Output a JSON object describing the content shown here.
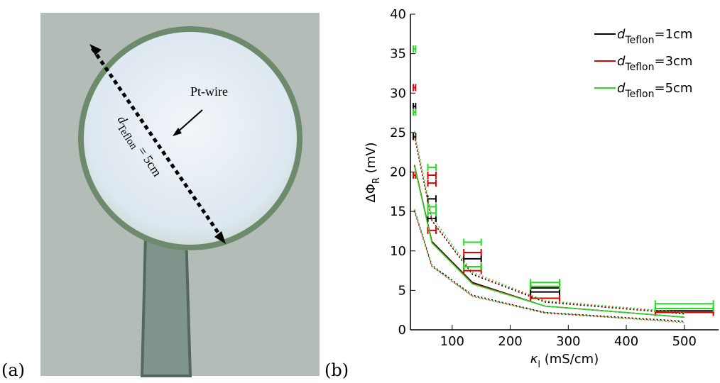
{
  "panel_a": {
    "label": "(a)",
    "wire": "Pt-wire",
    "dimension": {
      "symbol": "d",
      "sub": "Teflon",
      "text": " = 5cm"
    }
  },
  "chart_data": {
    "type": "line",
    "label": "(b)",
    "xlabel": {
      "symbol": "κ",
      "sub": "l",
      "text": " (mS/cm)"
    },
    "ylabel": {
      "symbol": "ΔΦ",
      "sub": "R",
      "text": " (mV)"
    },
    "xlim": [
      28,
      559
    ],
    "ylim": [
      0,
      40
    ],
    "xticks": [
      100,
      200,
      300,
      400,
      500
    ],
    "yticks": [
      0,
      5,
      10,
      15,
      20,
      25,
      30,
      35,
      40
    ],
    "legend": "upper right",
    "x": [
      35,
      65,
      135,
      260,
      500
    ],
    "series": [
      {
        "name": {
          "symbol": "d",
          "sub": "Teflon",
          "text": "=1cm"
        },
        "color": "#000000",
        "values": [
          20.8,
          11.2,
          6.0,
          3.0,
          1.6
        ],
        "upper": [
          24.5,
          13.8,
          7.0,
          3.5,
          2.0
        ],
        "lower": [
          15.2,
          8.2,
          4.4,
          2.2,
          1.1
        ],
        "points": {
          "x": [
            35,
            35,
            65,
            65,
            135,
            135,
            260,
            260,
            500
          ],
          "y": [
            24.5,
            28.3,
            14.1,
            16.6,
            8.0,
            9.0,
            4.8,
            5.3,
            2.4
          ],
          "xerr": [
            2,
            2,
            7,
            7,
            15,
            15,
            25,
            25,
            50
          ]
        }
      },
      {
        "name": {
          "symbol": "d",
          "sub": "Teflon",
          "text": "=3cm"
        },
        "color": "#e00000",
        "values": [
          20.9,
          11.1,
          5.9,
          3.0,
          1.6
        ],
        "upper": [
          24.6,
          13.9,
          7.1,
          3.6,
          2.1
        ],
        "lower": [
          15.0,
          8.0,
          4.3,
          2.1,
          1.0
        ],
        "points": {
          "x": [
            35,
            35,
            65,
            65,
            65,
            135,
            135,
            260,
            260,
            500
          ],
          "y": [
            19.6,
            30.7,
            12.6,
            18.6,
            19.6,
            7.5,
            9.8,
            4.0,
            5.5,
            2.2
          ],
          "xerr": [
            2,
            2,
            7,
            7,
            7,
            15,
            15,
            25,
            25,
            50
          ]
        }
      },
      {
        "name": {
          "symbol": "d",
          "sub": "Teflon",
          "text": "=5cm"
        },
        "color": "#22dd22",
        "values": [
          20.7,
          11.0,
          5.8,
          3.0,
          1.6
        ],
        "upper": [
          25.2,
          14.3,
          7.3,
          3.7,
          2.2
        ],
        "lower": [
          15.3,
          8.1,
          4.2,
          2.2,
          0.9
        ],
        "points": {
          "x": [
            35,
            35,
            65,
            65,
            65,
            135,
            135,
            260,
            260,
            500,
            500
          ],
          "y": [
            27.6,
            35.6,
            14.8,
            15.6,
            20.6,
            8.0,
            11.1,
            5.5,
            6.0,
            2.7,
            3.3
          ],
          "xerr": [
            2,
            2,
            7,
            7,
            7,
            15,
            15,
            25,
            25,
            50,
            50
          ]
        }
      }
    ]
  }
}
